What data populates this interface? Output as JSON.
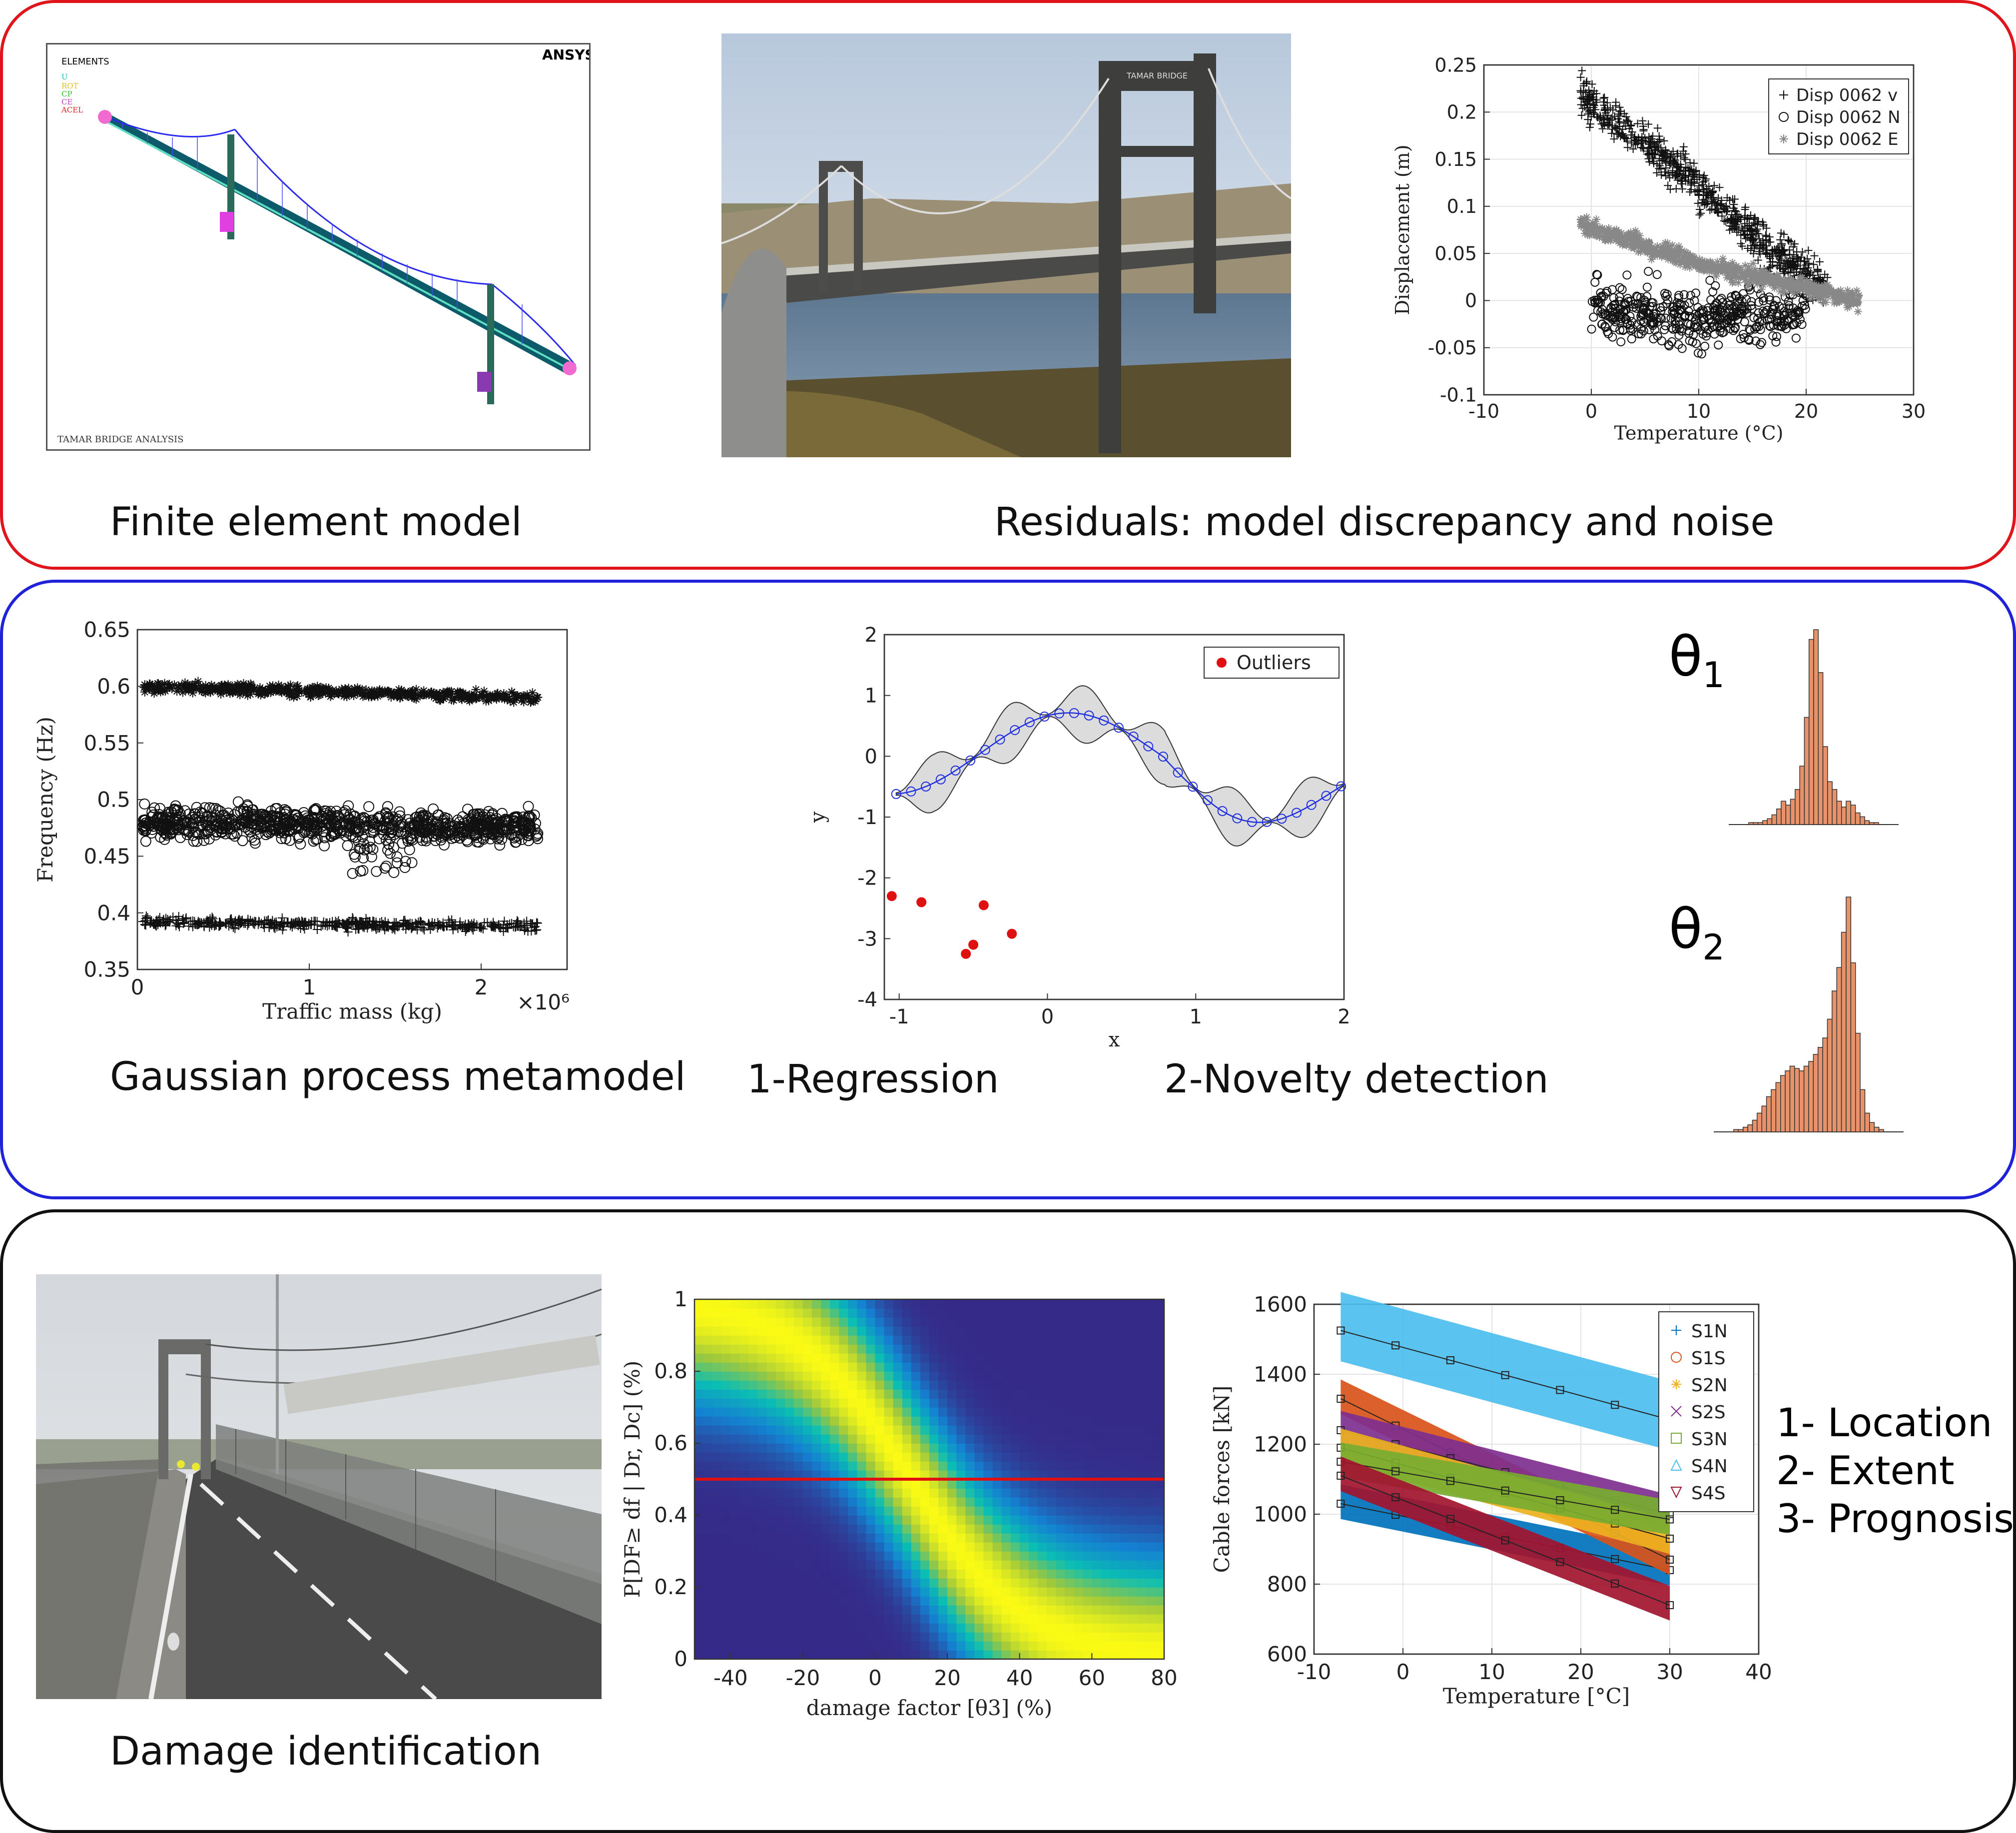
{
  "panels": {
    "top": {
      "fe_caption": "Finite element model",
      "residual_caption": "Residuals: model discrepancy and noise",
      "fe_window": {
        "elements": "ELEMENTS",
        "flags": [
          "U",
          "ROT",
          "CP",
          "CE",
          "ACEL"
        ],
        "logo": "ANSYS",
        "footer": "TAMAR BRIDGE ANALYSIS"
      },
      "bridge_photo_sign": "TAMAR BRIDGE"
    },
    "middle": {
      "gp_caption": "Gaussian process metamodel",
      "regression_caption": "1-Regression",
      "novelty_caption": "2-Novelty detection",
      "theta1": "θ1",
      "theta2": "θ2"
    },
    "bottom": {
      "damage_caption": "Damage identification",
      "goals": [
        "1- Location",
        "2- Extent",
        "3- Prognosis"
      ]
    }
  },
  "chart_data": [
    {
      "id": "displacement",
      "type": "scatter",
      "xlabel": "Temperature (°C)",
      "ylabel": "Displacement (m)",
      "xlim": [
        -10,
        30
      ],
      "ylim": [
        -0.1,
        0.25
      ],
      "xticks": [
        "-10",
        "0",
        "10",
        "20",
        "30"
      ],
      "yticks": [
        "-0.1",
        "-0.05",
        "0",
        "0.05",
        "0.1",
        "0.15",
        "0.2",
        "0.25"
      ],
      "grid": true,
      "legend": "top-right",
      "series": [
        {
          "name": "Disp 0062 v",
          "marker": "+",
          "trend": [
            [
              -1,
              0.22
            ],
            [
              8,
              0.14
            ],
            [
              16,
              0.06
            ],
            [
              22,
              0.01
            ]
          ]
        },
        {
          "name": "Disp 0062 N",
          "marker": "o",
          "trend": [
            [
              0,
              -0.01
            ],
            [
              10,
              -0.02
            ],
            [
              20,
              -0.01
            ]
          ]
        },
        {
          "name": "Disp 0062 E",
          "marker": "*",
          "trend": [
            [
              -1,
              0.08
            ],
            [
              10,
              0.04
            ],
            [
              25,
              0.0
            ]
          ]
        }
      ]
    },
    {
      "id": "frequency",
      "type": "scatter",
      "xlabel": "Traffic mass (kg)",
      "ylabel": "Frequency (Hz)",
      "xlim": [
        0,
        2.5
      ],
      "ylim": [
        0.35,
        0.65
      ],
      "xticks": [
        "0",
        "1",
        "2"
      ],
      "yticks": [
        "0.35",
        "0.4",
        "0.45",
        "0.5",
        "0.55",
        "0.6",
        "0.65"
      ],
      "xscale_label": "×10⁶",
      "series": [
        {
          "marker": "*",
          "band": [
            0.6,
            0.59
          ]
        },
        {
          "marker": "o",
          "band": [
            0.48,
            0.475
          ]
        },
        {
          "marker": "+",
          "band": [
            0.392,
            0.388
          ]
        }
      ]
    },
    {
      "id": "gp-regression",
      "type": "line",
      "xlabel": "x",
      "ylabel": "y",
      "xlim": [
        -1.1,
        2
      ],
      "ylim": [
        -4,
        2
      ],
      "xticks": [
        "-1",
        "0",
        "1",
        "2"
      ],
      "yticks": [
        "-4",
        "-3",
        "-2",
        "-1",
        "0",
        "1",
        "2"
      ],
      "legend": "top-right",
      "series": [
        {
          "name": "Outliers",
          "x": [
            -1.05,
            -0.85,
            -0.43,
            -0.5,
            -0.55,
            -0.24
          ],
          "y": [
            -2.3,
            -2.4,
            -2.45,
            -3.1,
            -3.25,
            -2.92
          ]
        }
      ]
    },
    {
      "id": "theta1-hist",
      "type": "bar",
      "values": [
        1,
        1,
        1,
        2,
        3,
        5,
        8,
        12,
        10,
        13,
        18,
        30,
        55,
        95,
        100,
        78,
        40,
        22,
        18,
        12,
        9,
        12,
        10,
        6,
        4,
        2,
        1,
        1
      ]
    },
    {
      "id": "theta2-hist",
      "type": "bar",
      "values": [
        1,
        1,
        2,
        3,
        5,
        8,
        11,
        15,
        18,
        21,
        24,
        26,
        28,
        27,
        26,
        28,
        30,
        33,
        36,
        40,
        48,
        60,
        70,
        85,
        100,
        72,
        42,
        18,
        8,
        4,
        2,
        1
      ]
    },
    {
      "id": "damage-probability",
      "type": "heatmap",
      "xlabel": "damage factor [θ3] (%)",
      "ylabel": "P[DF≥ df | Dr, Dc] (%)",
      "xlim": [
        -50,
        80
      ],
      "ylim": [
        0,
        1
      ],
      "xticks": [
        "-40",
        "-20",
        "0",
        "20",
        "40",
        "60",
        "80"
      ],
      "yticks": [
        "0",
        "0.2",
        "0.4",
        "0.6",
        "0.8",
        "1"
      ],
      "threshold": 0.5
    },
    {
      "id": "cable-forces",
      "type": "scatter",
      "xlabel": "Temperature [°C]",
      "ylabel": "Cable forces [kN]",
      "xlim": [
        -10,
        40
      ],
      "ylim": [
        600,
        1600
      ],
      "xticks": [
        "-10",
        "0",
        "10",
        "20",
        "30",
        "40"
      ],
      "yticks": [
        "600",
        "800",
        "1000",
        "1200",
        "1400",
        "1600"
      ],
      "legend": "top-right",
      "series": [
        {
          "name": "S1N",
          "color": "#0072bd",
          "marker": "+",
          "start": 1030,
          "end": 840
        },
        {
          "name": "S1S",
          "color": "#d95319",
          "marker": "o",
          "start": 1330,
          "end": 870
        },
        {
          "name": "S2N",
          "color": "#edb120",
          "marker": "*",
          "start": 1190,
          "end": 930
        },
        {
          "name": "S2S",
          "color": "#7e2f8e",
          "marker": "x",
          "start": 1240,
          "end": 1000
        },
        {
          "name": "S3N",
          "color": "#77ac30",
          "marker": "□",
          "start": 1150,
          "end": 985
        },
        {
          "name": "S4N",
          "color": "#4dbeee",
          "marker": "△",
          "start": 1525,
          "end": 1270
        },
        {
          "name": "S4S",
          "color": "#a2142f",
          "marker": "▽",
          "start": 1110,
          "end": 740
        }
      ]
    }
  ]
}
